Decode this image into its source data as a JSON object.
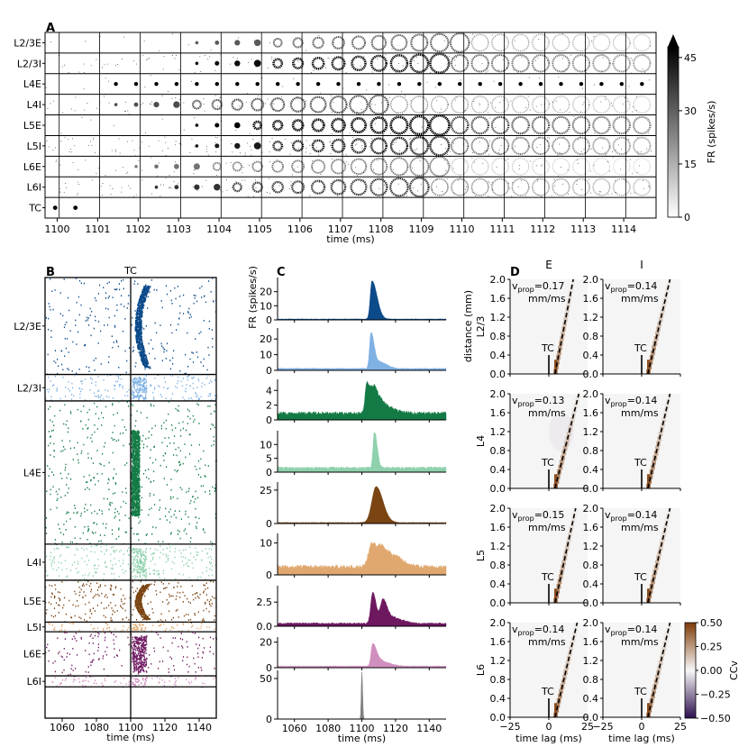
{
  "panel_labels": {
    "a": "A",
    "b": "B",
    "c": "C",
    "d": "D"
  },
  "chart_data": [
    {
      "id": "A",
      "type": "heatmap",
      "title": "",
      "rows": [
        "L2/3E",
        "L2/3I",
        "L4E",
        "L4I",
        "L5E",
        "L5I",
        "L6E",
        "L6I",
        "TC"
      ],
      "x": [
        1100,
        1101,
        1102,
        1103,
        1104,
        1105,
        1106,
        1107,
        1108,
        1109,
        1110,
        1111,
        1112,
        1113,
        1114
      ],
      "xtick_labels": [
        "1100",
        "1101",
        "1102",
        "1103",
        "1104",
        "1105",
        "1106",
        "1107",
        "1108",
        "1109",
        "1110",
        "1111",
        "1112",
        "1113",
        "1114"
      ],
      "xlabel": "time (ms)",
      "xlim": [
        1099.7,
        1114.8
      ],
      "frame_step_ms": 0.5,
      "colorbar": {
        "label": "FR (spikes/s)",
        "ticks": [
          0,
          15,
          30,
          45
        ],
        "tick_labels": [
          "0",
          "15",
          "30",
          "45"
        ],
        "range": [
          0,
          48
        ],
        "extend": "max"
      },
      "onset_ms": {
        "L2/3E": 1103.0,
        "L2/3I": 1103.0,
        "L4E": 1101.0,
        "L4I": 1101.0,
        "L5E": 1103.0,
        "L5I": 1103.0,
        "L6E": 1101.5,
        "L6I": 1102.0,
        "TC": 1100.0
      },
      "ring_speed": {
        "L2/3E": 0.55,
        "L2/3I": 0.6,
        "L4E": 0.0,
        "L4I": 0.55,
        "L5E": 0.62,
        "L5I": 0.6,
        "L6E": 0.5,
        "L6I": 0.55,
        "TC": 0.0
      },
      "peak_strength": {
        "L2/3E": 0.55,
        "L2/3I": 0.85,
        "L4E": 0.9,
        "L4I": 0.6,
        "L5E": 1.0,
        "L5I": 0.8,
        "L6E": 0.45,
        "L6I": 0.7,
        "TC": 0.95
      },
      "noise_density": {
        "L2/3E": 0.05,
        "L2/3I": 0.25,
        "L4E": 0.05,
        "L4I": 0.3,
        "L5E": 0.05,
        "L5I": 0.45,
        "L6E": 0.2,
        "L6I": 0.35,
        "TC": 0.0
      }
    },
    {
      "id": "B",
      "type": "scatter",
      "title": "TC",
      "xlabel": "time (ms)",
      "xlim": [
        1050,
        1150
      ],
      "xticks": [
        1060,
        1080,
        1100,
        1120,
        1140
      ],
      "xtick_labels": [
        "1060",
        "1080",
        "1100",
        "1120",
        "1140"
      ],
      "stimulus_line_x": 1100,
      "series": [
        {
          "name": "L2/3E",
          "color": "#0c4a8a",
          "height_share": 0.22,
          "density": 0.35,
          "burst": 0.9,
          "burst_shape": "arc"
        },
        {
          "name": "L2/3I",
          "color": "#7fb1e3",
          "height_share": 0.06,
          "density": 0.9,
          "burst": 0.6,
          "burst_shape": "blob"
        },
        {
          "name": "L4E",
          "color": "#137a45",
          "height_share": 0.325,
          "density": 0.45,
          "burst": 0.8,
          "burst_shape": "column"
        },
        {
          "name": "L4I",
          "color": "#8fd1ad",
          "height_share": 0.082,
          "density": 1.0,
          "burst": 0.4,
          "burst_shape": "blob"
        },
        {
          "name": "L5E",
          "color": "#7a4413",
          "height_share": 0.095,
          "density": 0.8,
          "burst": 1.0,
          "burst_shape": "arc"
        },
        {
          "name": "L5I",
          "color": "#e0a86e",
          "height_share": 0.022,
          "density": 1.0,
          "burst": 0.3,
          "burst_shape": "blob"
        },
        {
          "name": "L6E",
          "color": "#6e1860",
          "height_share": 0.1,
          "density": 0.5,
          "burst": 0.7,
          "burst_shape": "blob"
        },
        {
          "name": "L6I",
          "color": "#d18fc0",
          "height_share": 0.025,
          "density": 1.0,
          "burst": 0.3,
          "burst_shape": "blob"
        }
      ]
    },
    {
      "id": "C",
      "type": "area",
      "ylabel": "FR (spikes/s)",
      "xlabel": "time (ms)",
      "xlim": [
        1050,
        1150
      ],
      "xticks": [
        1060,
        1080,
        1100,
        1120,
        1140
      ],
      "xtick_labels": [
        "1060",
        "1080",
        "1100",
        "1120",
        "1140"
      ],
      "series": [
        {
          "name": "L2/3E",
          "color": "#0c4a8a",
          "baseline": 0.6,
          "ylim": [
            0,
            30
          ],
          "yticks": [
            0,
            10,
            20
          ],
          "ytick_labels": [
            "0",
            "10",
            "20"
          ],
          "peaks": [
            {
              "t": 1106,
              "height": 27,
              "rise": 1.0,
              "decay": 3.0
            }
          ]
        },
        {
          "name": "L2/3I",
          "color": "#7fb1e3",
          "baseline": 1.2,
          "ylim": [
            0,
            27
          ],
          "yticks": [
            0,
            10,
            20
          ],
          "ytick_labels": [
            "0",
            "10",
            "20"
          ],
          "peaks": [
            {
              "t": 1105.5,
              "height": 23,
              "rise": 0.9,
              "decay": 2.0
            },
            {
              "t": 1111,
              "height": 4,
              "rise": 1.5,
              "decay": 4.0
            }
          ]
        },
        {
          "name": "L4E",
          "color": "#137a45",
          "baseline": 0.9,
          "ylim": [
            0,
            5.5
          ],
          "yticks": [
            0,
            2,
            4
          ],
          "ytick_labels": [
            "0",
            "2",
            "4"
          ],
          "peaks": [
            {
              "t": 1103,
              "height": 4.2,
              "rise": 1.0,
              "decay": 3.0
            },
            {
              "t": 1108,
              "height": 2.6,
              "rise": 1.5,
              "decay": 4.0
            },
            {
              "t": 1115,
              "height": 0.6,
              "rise": 2.0,
              "decay": 6.0
            }
          ]
        },
        {
          "name": "L4I",
          "color": "#8fd1ad",
          "baseline": 1.6,
          "ylim": [
            0,
            15
          ],
          "yticks": [
            0,
            5,
            10
          ],
          "ytick_labels": [
            "0",
            "5",
            "10"
          ],
          "peaks": [
            {
              "t": 1107.5,
              "height": 13,
              "rise": 0.8,
              "decay": 1.6
            }
          ]
        },
        {
          "name": "L5E",
          "color": "#7a4413",
          "baseline": 0.7,
          "ylim": [
            0,
            31
          ],
          "yticks": [
            0,
            25
          ],
          "ytick_labels": [
            "0",
            "25"
          ],
          "peaks": [
            {
              "t": 1108.5,
              "height": 27,
              "rise": 2.5,
              "decay": 4.0
            }
          ]
        },
        {
          "name": "L5I",
          "color": "#e0a86e",
          "baseline": 2.5,
          "ylim": [
            0,
            13
          ],
          "yticks": [
            0,
            10
          ],
          "ytick_labels": [
            "0",
            "10"
          ],
          "peaks": [
            {
              "t": 1106,
              "height": 7.5,
              "rise": 2.0,
              "decay": 3.0
            },
            {
              "t": 1112,
              "height": 6.0,
              "rise": 2.0,
              "decay": 6.0
            },
            {
              "t": 1121,
              "height": 1.5,
              "rise": 2.0,
              "decay": 6.0
            }
          ]
        },
        {
          "name": "L6E",
          "color": "#6e1860",
          "baseline": 0.3,
          "ylim": [
            0,
            4.2
          ],
          "yticks": [
            0,
            2.5
          ],
          "ytick_labels": [
            "0.0",
            "2.5"
          ],
          "peaks": [
            {
              "t": 1106.5,
              "height": 3.2,
              "rise": 1.2,
              "decay": 2.0
            },
            {
              "t": 1112.5,
              "height": 2.5,
              "rise": 1.5,
              "decay": 3.0
            },
            {
              "t": 1120,
              "height": 0.5,
              "rise": 2.0,
              "decay": 5.0
            }
          ]
        },
        {
          "name": "L6I",
          "color": "#d18fc0",
          "baseline": 1.2,
          "ylim": [
            0,
            24
          ],
          "yticks": [
            0,
            20
          ],
          "ytick_labels": [
            "0",
            "20"
          ],
          "peaks": [
            {
              "t": 1106.5,
              "height": 18,
              "rise": 1.0,
              "decay": 2.5
            },
            {
              "t": 1112,
              "height": 3.5,
              "rise": 1.5,
              "decay": 5.0
            }
          ]
        },
        {
          "name": "TC",
          "color": "#808080",
          "baseline": 0,
          "ylim": [
            0,
            60
          ],
          "yticks": [
            0,
            50
          ],
          "ytick_labels": [
            "0",
            "50"
          ],
          "peaks": [
            {
              "t": 1100,
              "height": 58,
              "rise": 0.35,
              "decay": 0.45
            }
          ]
        }
      ]
    },
    {
      "id": "D",
      "type": "heatmap",
      "columns": [
        "E",
        "I"
      ],
      "rows": [
        "L2/3",
        "L4",
        "L5",
        "L6"
      ],
      "xlabel": "time lag (ms)",
      "ylabel": "distance (mm)",
      "xlim": [
        -25,
        25
      ],
      "ylim": [
        0,
        2.0
      ],
      "xticks": [
        -25,
        0,
        25
      ],
      "xtick_labels": [
        "−25",
        "0",
        "25"
      ],
      "yticks": [
        0.0,
        0.4,
        0.8,
        1.2,
        1.6,
        2.0
      ],
      "ytick_labels": [
        "0.0",
        "0.4",
        "0.8",
        "1.2",
        "1.6",
        "2.0"
      ],
      "tc_label": "TC",
      "tc_segment_mm": [
        0.0,
        0.4
      ],
      "v_prop_unit": "mm/ms",
      "v_prop_value_prefix": "=",
      "v_prop": {
        "L2/3": {
          "E": "0.17",
          "I": "0.14"
        },
        "L4": {
          "E": "0.13",
          "I": "0.14"
        },
        "L5": {
          "E": "0.15",
          "I": "0.14"
        },
        "L6": {
          "E": "0.14",
          "I": "0.14"
        }
      },
      "colorbar": {
        "label": "CCv",
        "ticks": [
          -0.5,
          -0.25,
          0,
          0.25,
          0.5
        ],
        "tick_labels": [
          "−0.50",
          "−0.25",
          "0.00",
          "0.25",
          "0.50"
        ],
        "range": [
          -0.5,
          0.5
        ],
        "low_color": "#2b0f4e",
        "mid_color": "#f7f7f7",
        "high_color": "#7f3b08"
      }
    }
  ]
}
